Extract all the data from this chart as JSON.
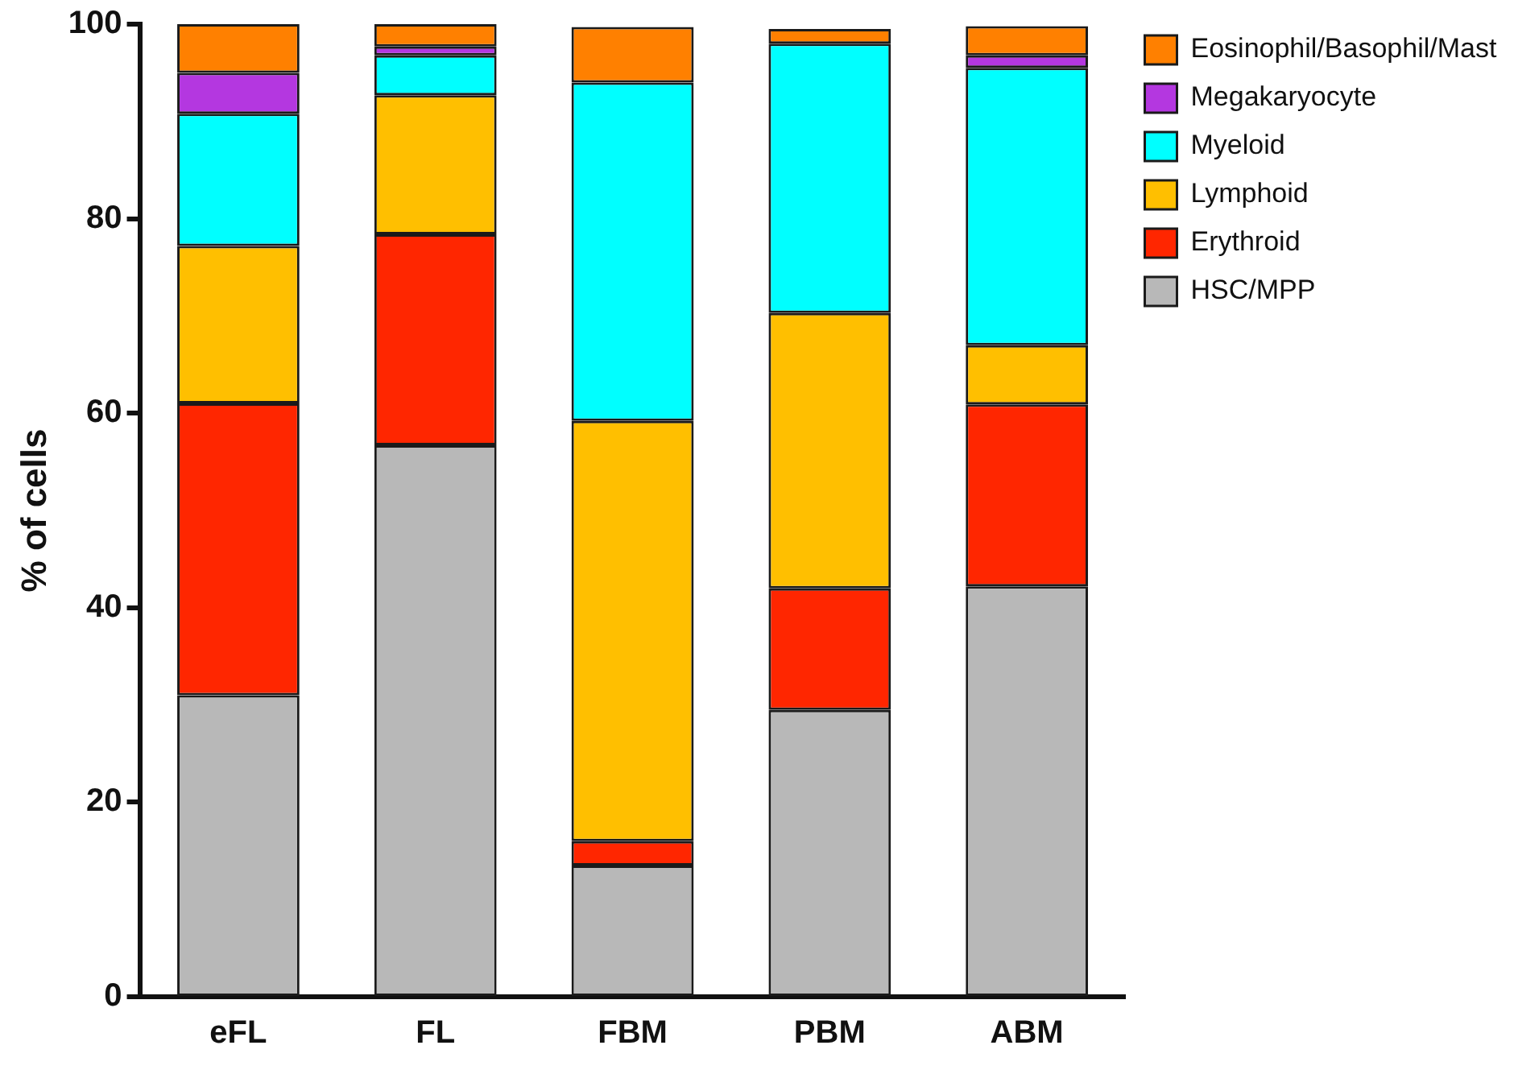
{
  "chart_data": {
    "type": "bar",
    "stacked": true,
    "ylabel": "% of cells",
    "categories": [
      "eFL",
      "FL",
      "FBM",
      "PBM",
      "ABM"
    ],
    "ylim": [
      0,
      100
    ],
    "yticks": [
      0,
      20,
      40,
      60,
      80,
      100
    ],
    "grid": false,
    "legend": "top right",
    "series": [
      {
        "name": "HSC/MPP",
        "color": "#b8b8b8",
        "values": [
          31,
          56.7,
          13.5,
          29.5,
          42.2
        ]
      },
      {
        "name": "Erythroid",
        "color": "#ff2600",
        "values": [
          30,
          21.7,
          2.5,
          12.5,
          18.7
        ]
      },
      {
        "name": "Lymphoid",
        "color": "#ffbf00",
        "values": [
          16.2,
          14.3,
          43.2,
          28.3,
          6.1
        ]
      },
      {
        "name": "Myeloid",
        "color": "#00ffff",
        "values": [
          13.6,
          4.1,
          34.8,
          27.7,
          28.5
        ]
      },
      {
        "name": "Megakaryocyte",
        "color": "#b437e0",
        "values": [
          4.2,
          0.9,
          null,
          null,
          1.3
        ]
      },
      {
        "name": "Eosinophil/Basophil/Mast",
        "color": "#ff8000",
        "values": [
          5,
          2.3,
          5.7,
          1.5,
          3
        ]
      }
    ]
  }
}
